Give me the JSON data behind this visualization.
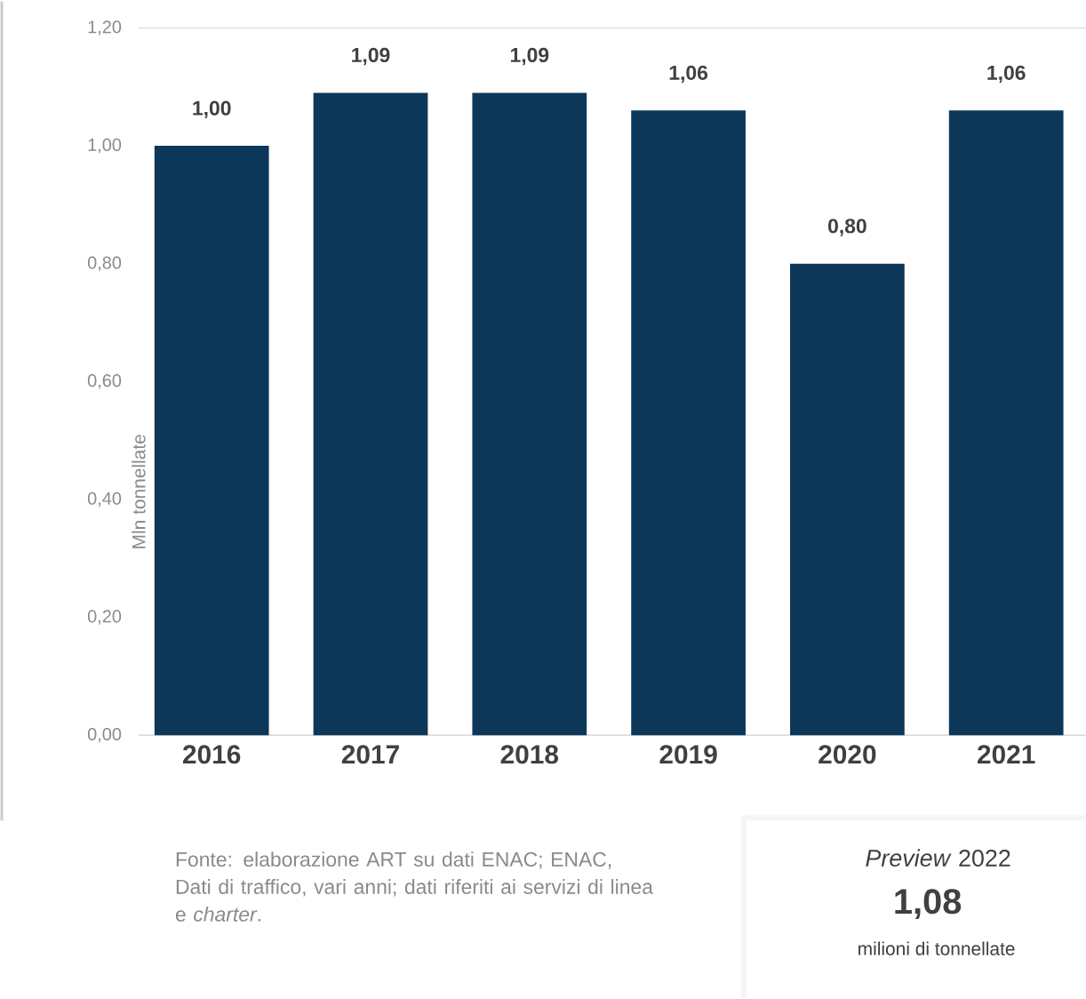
{
  "chart_data": {
    "type": "bar",
    "ylabel": "Mln tonnellate",
    "categories": [
      "2016",
      "2017",
      "2018",
      "2019",
      "2020",
      "2021"
    ],
    "values": [
      1.0,
      1.09,
      1.09,
      1.06,
      0.8,
      1.06
    ],
    "value_labels": [
      "1,00",
      "1,09",
      "1,09",
      "1,06",
      "0,80",
      "1,06"
    ],
    "color": "#0d3759",
    "ylim": [
      0,
      1.2
    ],
    "yticks": [
      {
        "value": 0,
        "label": "0,00"
      },
      {
        "value": 0.2,
        "label": "0,20"
      },
      {
        "value": 0.4,
        "label": "0,40"
      },
      {
        "value": 0.6,
        "label": "0,60"
      },
      {
        "value": 0.8,
        "label": "0,80"
      },
      {
        "value": 1.0,
        "label": "1,00"
      },
      {
        "value": 1.2,
        "label": "1,20"
      }
    ],
    "annotations": [
      "Fonte: elaborazione ART su dati ENAC; ENAC, Dati di traffico, vari anni; dati riferiti ai servizi di linea e *charter*.",
      "*Preview* 2022",
      "1,08",
      "milioni di tonnellate"
    ]
  }
}
